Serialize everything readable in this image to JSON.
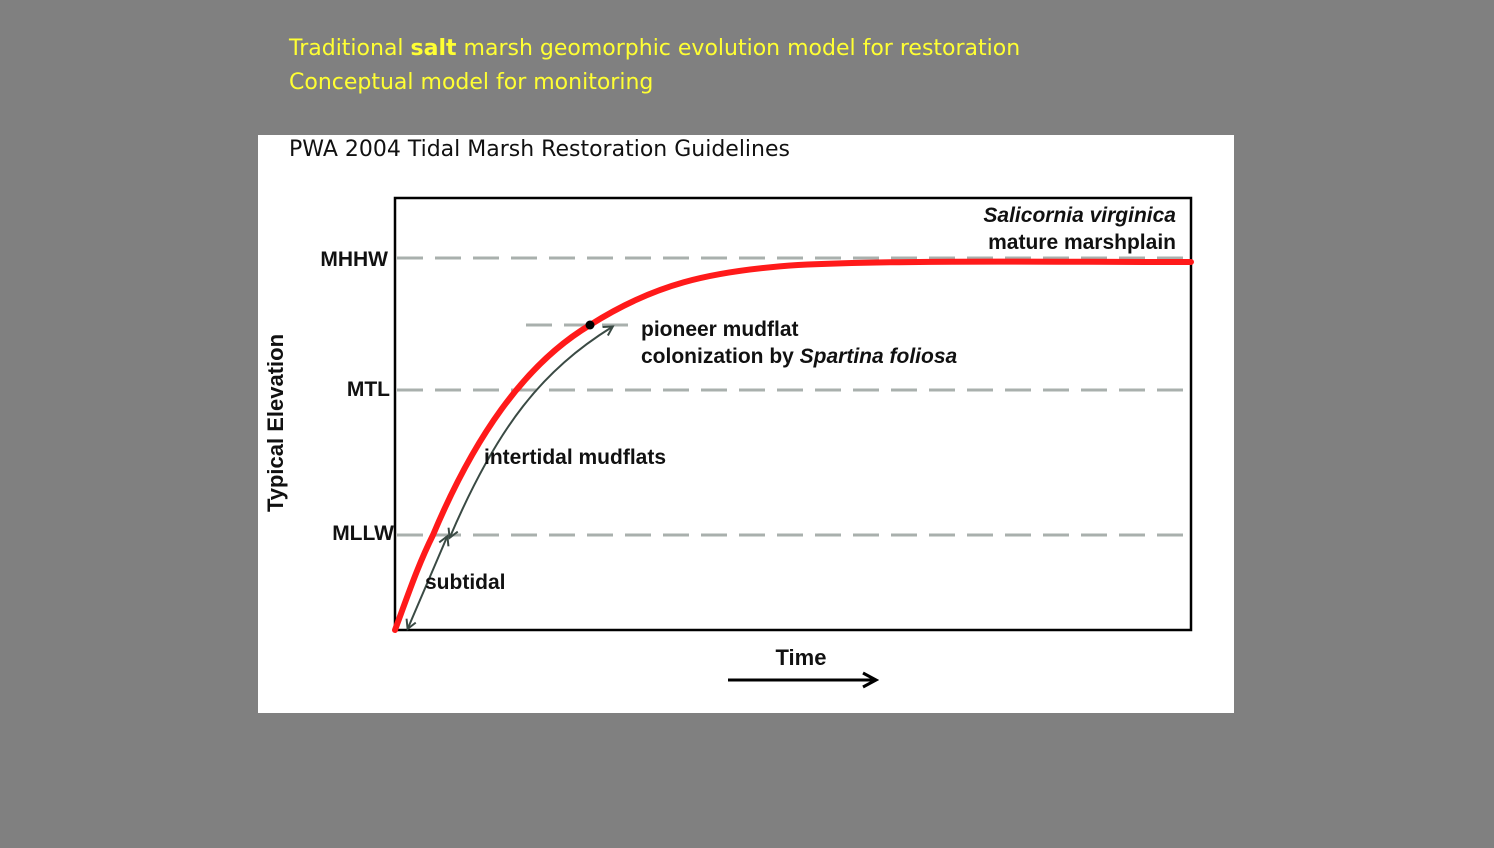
{
  "slide": {
    "title_line1_pre": "Traditional ",
    "title_line1_bold": "salt",
    "title_line1_post": " marsh geomorphic evolution model for restoration",
    "title_line2": "Conceptual model for monitoring",
    "title_color": "#ffff33",
    "background_color": "#808080"
  },
  "figure": {
    "source": "PWA 2004  Tidal Marsh Restoration Guidelines",
    "y_axis_label": "Typical Elevation",
    "x_axis_label": "Time",
    "levels": [
      {
        "name": "MHHW"
      },
      {
        "name": "MTL"
      },
      {
        "name": "MLLW"
      }
    ],
    "annotations": {
      "mature_species": "Salicornia virginica",
      "mature_label": "mature  marshplain",
      "pioneer_line1": "pioneer mudflat",
      "pioneer_line2_pre": "colonization by ",
      "pioneer_line2_species": "Spartina foliosa",
      "intertidal": "intertidal mudflats",
      "subtidal": "subtidal"
    },
    "colors": {
      "curve": "#ff1a1a",
      "reference_lines": "#a9b0ad",
      "range_arrows": "#3a4a44"
    }
  }
}
